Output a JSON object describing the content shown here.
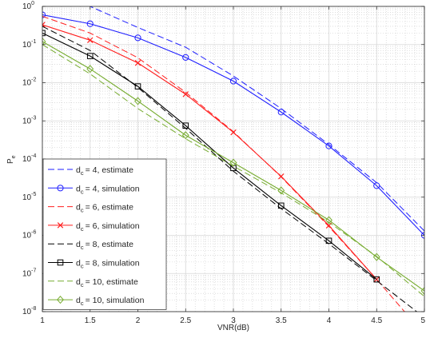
{
  "chart_data": {
    "type": "line",
    "title": "",
    "xlabel": "VNR(dB)",
    "ylabel": "P",
    "ylabel_sub": "e",
    "x_scale": "linear",
    "y_scale": "log",
    "xlim": [
      1,
      5
    ],
    "ylim": [
      1e-08,
      1
    ],
    "grid": true,
    "minor_grid": true,
    "legend_placement": "lower-left",
    "x_ticks": [
      1,
      1.5,
      2,
      2.5,
      3,
      3.5,
      4,
      4.5,
      5
    ],
    "x_tick_labels": [
      "1",
      "1.5",
      "2",
      "2.5",
      "3",
      "3.5",
      "4",
      "4.5",
      "5"
    ],
    "y_ticks": [
      {
        "value": 1.0,
        "base": "10",
        "exp": "0"
      },
      {
        "value": 0.1,
        "base": "10",
        "exp": "-1"
      },
      {
        "value": 0.01,
        "base": "10",
        "exp": "-2"
      },
      {
        "value": 0.001,
        "base": "10",
        "exp": "-3"
      },
      {
        "value": 0.0001,
        "base": "10",
        "exp": "-4"
      },
      {
        "value": 1e-05,
        "base": "10",
        "exp": "-5"
      },
      {
        "value": 1e-06,
        "base": "10",
        "exp": "-6"
      },
      {
        "value": 1e-07,
        "base": "10",
        "exp": "-7"
      },
      {
        "value": 1e-08,
        "base": "10",
        "exp": "-8"
      }
    ],
    "series": [
      {
        "pre": "d",
        "sub": "c",
        "post": "= 4, estimate",
        "color": "#1f1fff",
        "dash": true,
        "marker": "none",
        "x": [
          1,
          1.5,
          2,
          2.5,
          3,
          3.5,
          4,
          4.5,
          5
        ],
        "y": [
          3.0,
          1.0,
          0.28,
          0.085,
          0.015,
          0.0021,
          0.00024,
          2.4e-05,
          1.3e-06
        ]
      },
      {
        "pre": "d",
        "sub": "c",
        "post": "= 4, simulation",
        "color": "#1f1fff",
        "dash": false,
        "marker": "circle",
        "x": [
          1,
          1.5,
          2,
          2.5,
          3,
          3.5,
          4,
          4.5,
          5
        ],
        "y": [
          0.6,
          0.35,
          0.15,
          0.046,
          0.011,
          0.0017,
          0.00022,
          2e-05,
          1e-06
        ]
      },
      {
        "pre": "d",
        "sub": "c",
        "post": "= 6, estimate",
        "color": "#ff1f1f",
        "dash": true,
        "marker": "none",
        "x": [
          1,
          1.5,
          2,
          2.5,
          3,
          3.5,
          4,
          4.5,
          5
        ],
        "y": [
          0.55,
          0.2,
          0.045,
          0.0056,
          0.00052,
          3.4e-05,
          1.7e-06,
          7e-08,
          2.5e-09
        ]
      },
      {
        "pre": "d",
        "sub": "c",
        "post": "= 6, simulation",
        "color": "#ff1f1f",
        "dash": false,
        "marker": "x",
        "x": [
          1,
          1.5,
          2,
          2.5,
          3,
          3.5,
          4,
          4.5
        ],
        "y": [
          0.33,
          0.13,
          0.033,
          0.005,
          0.0005,
          3.5e-05,
          1.8e-06,
          7e-08
        ]
      },
      {
        "pre": "d",
        "sub": "c",
        "post": "= 8, estimate",
        "color": "#000000",
        "dash": true,
        "marker": "none",
        "x": [
          1,
          1.5,
          2,
          2.5,
          3,
          3.5,
          4,
          4.5,
          5
        ],
        "y": [
          0.3,
          0.07,
          0.0075,
          0.00064,
          4.8e-05,
          5e-06,
          6e-07,
          6.5e-08,
          7e-09
        ]
      },
      {
        "pre": "d",
        "sub": "c",
        "post": "= 8, simulation",
        "color": "#000000",
        "dash": false,
        "marker": "square",
        "x": [
          1,
          1.5,
          2,
          2.5,
          3,
          3.5,
          4,
          4.5
        ],
        "y": [
          0.2,
          0.05,
          0.008,
          0.00075,
          5.8e-05,
          6e-06,
          7.2e-07,
          7e-08
        ]
      },
      {
        "pre": "d",
        "sub": "c",
        "post": "= 10, estimate",
        "color": "#77ac30",
        "dash": true,
        "marker": "none",
        "x": [
          1,
          1.5,
          2,
          2.5,
          3,
          3.5,
          4,
          4.5,
          5
        ],
        "y": [
          0.1,
          0.017,
          0.0021,
          0.00034,
          6.5e-05,
          1.3e-05,
          2.2e-06,
          2.8e-07,
          2.5e-08
        ]
      },
      {
        "pre": "d",
        "sub": "c",
        "post": "= 10, simulation",
        "color": "#77ac30",
        "dash": false,
        "marker": "diamond",
        "x": [
          1,
          1.5,
          2,
          2.5,
          3,
          3.5,
          4,
          4.5,
          5
        ],
        "y": [
          0.12,
          0.023,
          0.0033,
          0.00042,
          8e-05,
          1.5e-05,
          2.5e-06,
          2.7e-07,
          3.5e-08
        ]
      }
    ]
  }
}
